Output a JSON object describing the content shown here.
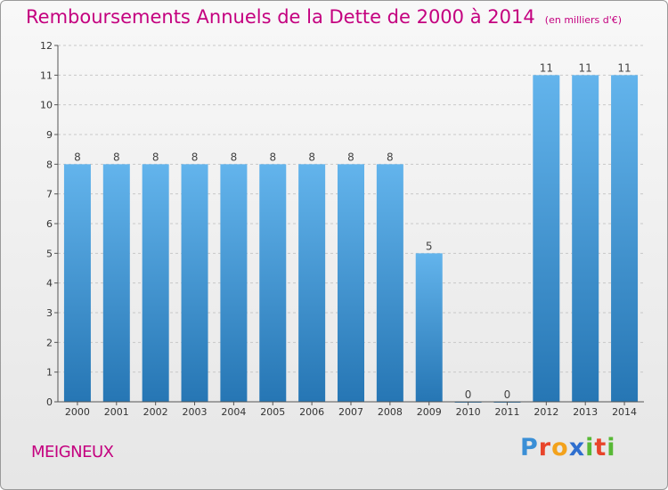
{
  "header": {
    "title": "Remboursements Annuels de la Dette de 2000 à 2014",
    "unit": "(en milliers d'€)"
  },
  "footer": {
    "commune": "MEIGNEUX",
    "brand_letters": [
      {
        "char": "P",
        "color": "#3a8fd6"
      },
      {
        "char": "r",
        "color": "#e8442a"
      },
      {
        "char": "o",
        "color": "#f3a21c"
      },
      {
        "char": "x",
        "color": "#2f6fcf"
      },
      {
        "char": "i",
        "color": "#58b936"
      },
      {
        "char": "t",
        "color": "#e8442a"
      },
      {
        "char": "i",
        "color": "#58b936"
      }
    ]
  },
  "colors": {
    "title": "#c4007f",
    "bar_light": "#63b4ec",
    "bar_dark": "#2676b4",
    "axis": "#555555",
    "grid": "#c8c8c8"
  },
  "chart_data": {
    "type": "bar",
    "title": "Remboursements Annuels de la Dette de 2000 à 2014",
    "subtitle": "(en milliers d'€)",
    "xlabel": "",
    "ylabel": "",
    "categories": [
      "2000",
      "2001",
      "2002",
      "2003",
      "2004",
      "2005",
      "2006",
      "2007",
      "2008",
      "2009",
      "2010",
      "2011",
      "2012",
      "2013",
      "2014"
    ],
    "values": [
      8,
      8,
      8,
      8,
      8,
      8,
      8,
      8,
      8,
      5,
      0,
      0,
      11,
      11,
      11
    ],
    "data_labels": [
      "8",
      "8",
      "8",
      "8",
      "8",
      "8",
      "8",
      "8",
      "8",
      "5",
      "0",
      "0",
      "11",
      "11",
      "11"
    ],
    "ylim": [
      0,
      12
    ],
    "yticks": [
      "0",
      "1",
      "2",
      "3",
      "4",
      "5",
      "6",
      "7",
      "8",
      "9",
      "10",
      "11",
      "12"
    ],
    "grid": "dashed horizontal",
    "legend": "none"
  }
}
